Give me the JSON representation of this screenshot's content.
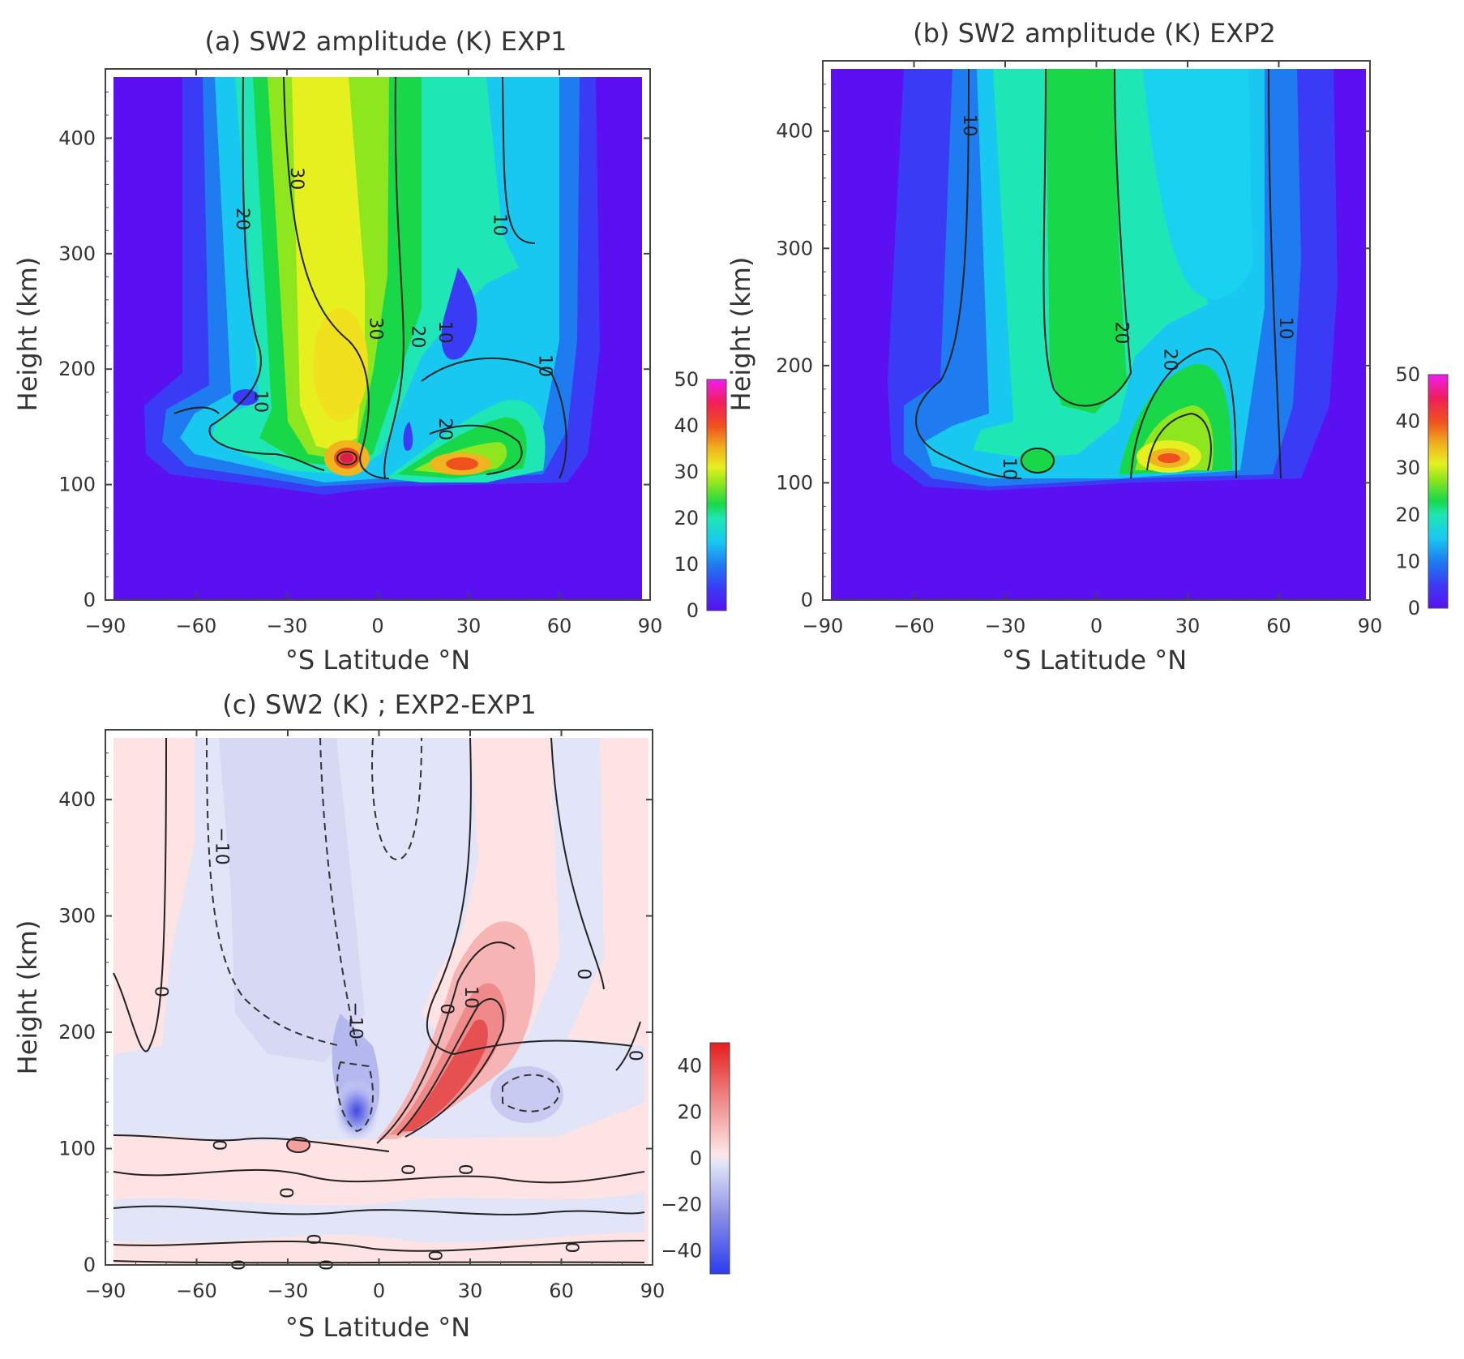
{
  "chart_data": [
    {
      "id": "a",
      "type": "contour",
      "title": "(a) SW2 amplitude (K) EXP1",
      "xlabel": "°S  Latitude  °N",
      "ylabel": "Height (km)",
      "xticks": [
        -90,
        -60,
        -30,
        0,
        30,
        60,
        90
      ],
      "yticks": [
        0,
        100,
        200,
        300,
        400
      ],
      "xlim": [
        -90,
        90
      ],
      "ylim": [
        0,
        460
      ],
      "colorbar": {
        "min": 0,
        "max": 50,
        "ticks": [
          0,
          10,
          20,
          30,
          40,
          50
        ]
      },
      "contour_labels": [
        {
          "text": "30",
          "lat": -27,
          "h": 365
        },
        {
          "text": "20",
          "lat": -45,
          "h": 330
        },
        {
          "text": "10",
          "lat": 40,
          "h": 325
        },
        {
          "text": "30",
          "lat": -1,
          "h": 235
        },
        {
          "text": "20",
          "lat": 13,
          "h": 228
        },
        {
          "text": "10",
          "lat": 22,
          "h": 232
        },
        {
          "text": "10",
          "lat": 55,
          "h": 203
        },
        {
          "text": "10",
          "lat": -39,
          "h": 172
        },
        {
          "text": "20",
          "lat": 22,
          "h": 148
        }
      ],
      "maxima": [
        {
          "lat": -10,
          "h": 122,
          "value": 45
        },
        {
          "lat": 27,
          "h": 118,
          "value": 35
        },
        {
          "lat": -12,
          "h": 200,
          "value": 31
        }
      ]
    },
    {
      "id": "b",
      "type": "contour",
      "title": "(b) SW2 amplitude (K) EXP2",
      "xlabel": "°S  Latitude  °N",
      "ylabel": "Height (km)",
      "xticks": [
        -90,
        -60,
        -30,
        0,
        30,
        60,
        90
      ],
      "yticks": [
        0,
        100,
        200,
        300,
        400
      ],
      "xlim": [
        -90,
        90
      ],
      "ylim": [
        0,
        460
      ],
      "colorbar": {
        "min": 0,
        "max": 50,
        "ticks": [
          0,
          10,
          20,
          30,
          40,
          50
        ]
      },
      "contour_labels": [
        {
          "text": "10",
          "lat": -42,
          "h": 405
        },
        {
          "text": "20",
          "lat": 8,
          "h": 228
        },
        {
          "text": "20",
          "lat": 24,
          "h": 205
        },
        {
          "text": "10",
          "lat": 62,
          "h": 232
        },
        {
          "text": "10",
          "lat": -29,
          "h": 112
        }
      ],
      "maxima": [
        {
          "lat": 22,
          "h": 122,
          "value": 35
        },
        {
          "lat": -18,
          "h": 120,
          "value": 22
        }
      ]
    },
    {
      "id": "c",
      "type": "contour",
      "title": "(c) SW2 (K) ; EXP2-EXP1",
      "xlabel": "°S  Latitude  °N",
      "ylabel": "Height (km)",
      "xticks": [
        -90,
        -60,
        -30,
        0,
        30,
        60,
        90
      ],
      "yticks": [
        0,
        100,
        200,
        300,
        400
      ],
      "xlim": [
        -90,
        90
      ],
      "ylim": [
        0,
        460
      ],
      "colorbar": {
        "min": -50,
        "max": 50,
        "ticks": [
          -40,
          -20,
          0,
          20,
          40
        ]
      },
      "contour_labels": [
        {
          "text": "-10",
          "lat": -52,
          "h": 360
        },
        {
          "text": "-10",
          "lat": -8,
          "h": 210
        },
        {
          "text": "10",
          "lat": 30,
          "h": 230
        },
        {
          "text": "0",
          "lat": -72,
          "h": 235
        },
        {
          "text": "0",
          "lat": 67,
          "h": 250
        },
        {
          "text": "0",
          "lat": 22,
          "h": 220
        },
        {
          "text": "0",
          "lat": -53,
          "h": 103
        },
        {
          "text": "0",
          "lat": 84,
          "h": 180
        },
        {
          "text": "0",
          "lat": 9,
          "h": 82
        },
        {
          "text": "0",
          "lat": 28,
          "h": 82
        },
        {
          "text": "0",
          "lat": -31,
          "h": 62
        },
        {
          "text": "0",
          "lat": -22,
          "h": 22
        },
        {
          "text": "0",
          "lat": -47,
          "h": 0
        },
        {
          "text": "0",
          "lat": -18,
          "h": 0
        },
        {
          "text": "0",
          "lat": 18,
          "h": 8
        },
        {
          "text": "0",
          "lat": 63,
          "h": 15
        }
      ],
      "extremes": [
        {
          "lat": 15,
          "h": 140,
          "value": 30
        },
        {
          "lat": -10,
          "h": 125,
          "value": -30
        }
      ]
    }
  ]
}
